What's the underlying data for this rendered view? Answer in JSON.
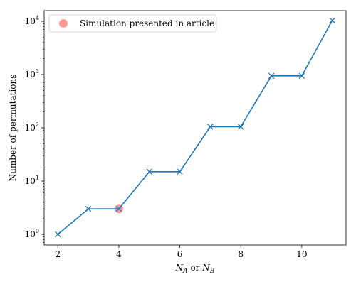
{
  "chart_data": {
    "type": "line",
    "title": "",
    "xlabel": {
      "parts": [
        {
          "text": "N",
          "style": "italic"
        },
        {
          "text": "A",
          "style": "sub"
        },
        {
          "text": " or ",
          "style": "normal"
        },
        {
          "text": "N",
          "style": "italic"
        },
        {
          "text": "B",
          "style": "sub"
        }
      ]
    },
    "ylabel": "Number of permutations",
    "xlim": [
      1.55,
      11.45
    ],
    "ylim_log10": [
      -0.2,
      4.2
    ],
    "yscale": "log",
    "grid": false,
    "x_ticks": [
      2,
      4,
      6,
      8,
      10
    ],
    "x_tick_labels": [
      "2",
      "4",
      "6",
      "8",
      "10"
    ],
    "y_ticks": [
      1,
      10,
      100,
      1000,
      10000
    ],
    "y_tick_labels": [
      {
        "base": "10",
        "exp": "0"
      },
      {
        "base": "10",
        "exp": "1"
      },
      {
        "base": "10",
        "exp": "2"
      },
      {
        "base": "10",
        "exp": "3"
      },
      {
        "base": "10",
        "exp": "4"
      }
    ],
    "series": [
      {
        "color": "#1f77b4",
        "marker": "x",
        "x": [
          2,
          3,
          4,
          5,
          6,
          7,
          8,
          9,
          10,
          11
        ],
        "y": [
          1,
          3,
          3,
          15,
          15,
          105,
          105,
          945,
          945,
          10395
        ]
      }
    ],
    "highlight": {
      "name": "Simulation presented in article",
      "color": "#ff6b6b",
      "x": 4,
      "y": 3
    },
    "legend": {
      "placement": "top-left",
      "entries": [
        "Simulation presented in article"
      ]
    }
  }
}
